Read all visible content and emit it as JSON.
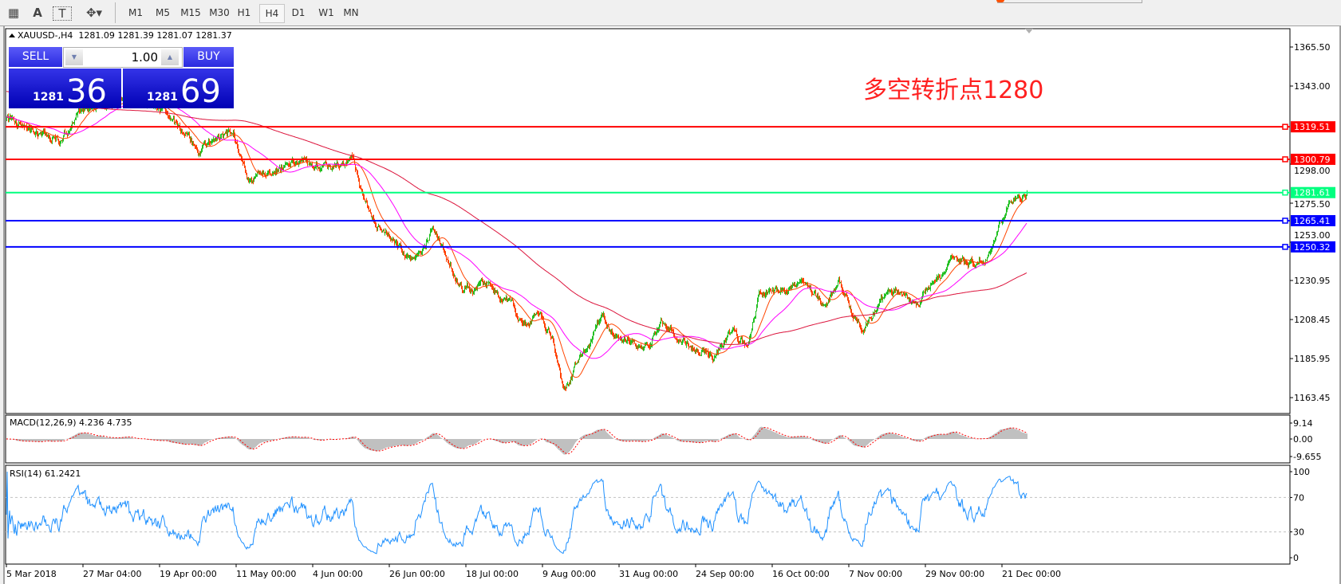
{
  "toolbar": {
    "tools": [
      {
        "name": "grid-fibo-icon",
        "glyph": "▦"
      },
      {
        "name": "text-icon",
        "glyph": "A"
      },
      {
        "name": "text-label-icon",
        "glyph": "T"
      },
      {
        "name": "shapes-icon",
        "glyph": "✥▾"
      }
    ],
    "timeframes": [
      "M1",
      "M5",
      "M15",
      "M30",
      "H1",
      "H4",
      "D1",
      "W1",
      "MN"
    ],
    "active_timeframe": "H4"
  },
  "chart": {
    "symbol_line": "XAUUSD-,H4  1281.09 1281.39 1281.07 1281.37",
    "annotation": "多空转折点1280",
    "annotation_color": "#ff2020"
  },
  "trade_panel": {
    "sell_label": "SELL",
    "buy_label": "BUY",
    "lot_value": "1.00",
    "sell_big": "1281",
    "sell_small_digits": "36",
    "buy_big": "1281",
    "buy_small_digits": "69"
  },
  "indicators": {
    "macd_label": "MACD(12,26,9) 4.236 4.735",
    "rsi_label": "RSI(14) 61.2421"
  },
  "chart_data": {
    "type": "candlestick",
    "symbol": "XAUUSD-",
    "timeframe": "H4",
    "last_ohlc": {
      "open": 1281.09,
      "high": 1281.39,
      "low": 1281.07,
      "close": 1281.37
    },
    "price_axis_ticks": [
      "1365.50",
      "1343.00",
      "1298.00",
      "1275.50",
      "1253.00",
      "1230.95",
      "1208.45",
      "1185.95",
      "1163.45"
    ],
    "price_range": [
      1154,
      1377
    ],
    "date_ticks": [
      {
        "label": "5 Mar 2018",
        "date": "2018-03-05"
      },
      {
        "label": "27 Mar 04:00",
        "date": "2018-03-27"
      },
      {
        "label": "19 Apr 00:00",
        "date": "2018-04-19"
      },
      {
        "label": "11 May 00:00",
        "date": "2018-05-11"
      },
      {
        "label": "4 Jun 00:00",
        "date": "2018-06-04"
      },
      {
        "label": "26 Jun 00:00",
        "date": "2018-06-26"
      },
      {
        "label": "18 Jul 00:00",
        "date": "2018-07-18"
      },
      {
        "label": "9 Aug 00:00",
        "date": "2018-08-09"
      },
      {
        "label": "31 Aug 00:00",
        "date": "2018-08-31"
      },
      {
        "label": "24 Sep 00:00",
        "date": "2018-09-24"
      },
      {
        "label": "16 Oct 00:00",
        "date": "2018-10-16"
      },
      {
        "label": "7 Nov 00:00",
        "date": "2018-11-07"
      },
      {
        "label": "29 Nov 00:00",
        "date": "2018-11-29"
      },
      {
        "label": "21 Dec 00:00",
        "date": "2018-12-21"
      }
    ],
    "approx_price_path": [
      [
        "2018-03-05",
        1323.7
      ],
      [
        "2018-03-20",
        1311
      ],
      [
        "2018-03-27",
        1329
      ],
      [
        "2018-04-08",
        1334
      ],
      [
        "2018-04-20",
        1329
      ],
      [
        "2018-04-30",
        1306
      ],
      [
        "2018-05-10",
        1317
      ],
      [
        "2018-05-15",
        1289
      ],
      [
        "2018-05-23",
        1296
      ],
      [
        "2018-06-02",
        1299
      ],
      [
        "2018-06-13",
        1296
      ],
      [
        "2018-06-15",
        1304
      ],
      [
        "2018-06-18",
        1281
      ],
      [
        "2018-06-22",
        1264.5
      ],
      [
        "2018-06-29",
        1249.8
      ],
      [
        "2018-07-03",
        1240
      ],
      [
        "2018-07-08",
        1262
      ],
      [
        "2018-07-11",
        1250
      ],
      [
        "2018-07-17",
        1225.5
      ],
      [
        "2018-07-24",
        1230
      ],
      [
        "2018-07-31",
        1215
      ],
      [
        "2018-08-03",
        1205
      ],
      [
        "2018-08-08",
        1212
      ],
      [
        "2018-08-12",
        1195.6
      ],
      [
        "2018-08-15",
        1166
      ],
      [
        "2018-08-18",
        1181
      ],
      [
        "2018-08-22",
        1196
      ],
      [
        "2018-08-26",
        1210
      ],
      [
        "2018-08-31",
        1198
      ],
      [
        "2018-09-08",
        1193
      ],
      [
        "2018-09-13",
        1205
      ],
      [
        "2018-09-19",
        1198
      ],
      [
        "2018-09-29",
        1186
      ],
      [
        "2018-10-04",
        1202
      ],
      [
        "2018-10-09",
        1191
      ],
      [
        "2018-10-12",
        1222.7
      ],
      [
        "2018-10-21",
        1225
      ],
      [
        "2018-10-26",
        1230
      ],
      [
        "2018-10-31",
        1214
      ],
      [
        "2018-11-04",
        1230
      ],
      [
        "2018-11-11",
        1200.7
      ],
      [
        "2018-11-16",
        1219
      ],
      [
        "2018-11-21",
        1224
      ],
      [
        "2018-11-27",
        1214
      ],
      [
        "2018-11-29",
        1224
      ],
      [
        "2018-12-07",
        1244.7
      ],
      [
        "2018-12-13",
        1240
      ],
      [
        "2018-12-17",
        1244.7
      ],
      [
        "2018-12-20",
        1262
      ],
      [
        "2018-12-24",
        1276.9
      ],
      [
        "2018-12-28",
        1281.37
      ]
    ],
    "horizontal_lines": [
      {
        "price": "1319.51",
        "color": "#ff0000"
      },
      {
        "price": "1300.79",
        "color": "#ff0000"
      },
      {
        "price": "1281.61",
        "color": "#00ff7f"
      },
      {
        "price": "1265.41",
        "color": "#0000ff"
      },
      {
        "price": "1250.32",
        "color": "#0000ff"
      }
    ],
    "moving_averages": [
      {
        "color": "#ff4500"
      },
      {
        "color": "#ff00ff"
      },
      {
        "color": "#dc143c"
      }
    ],
    "candle_colors": {
      "up": "#22c022",
      "down": "#ff4000"
    },
    "macd": {
      "params": "12,26,9",
      "main": 4.236,
      "signal": 4.735,
      "axis_ticks": [
        "9.14",
        "0.00",
        "-9.655"
      ],
      "histogram_color": "#c0c0c0",
      "signal_color": "#ff0000"
    },
    "rsi": {
      "period": 14,
      "value": 61.2421,
      "axis_ticks": [
        "100",
        "70",
        "30",
        "0"
      ],
      "levels": [
        70,
        30
      ],
      "color": "#1e90ff"
    }
  }
}
